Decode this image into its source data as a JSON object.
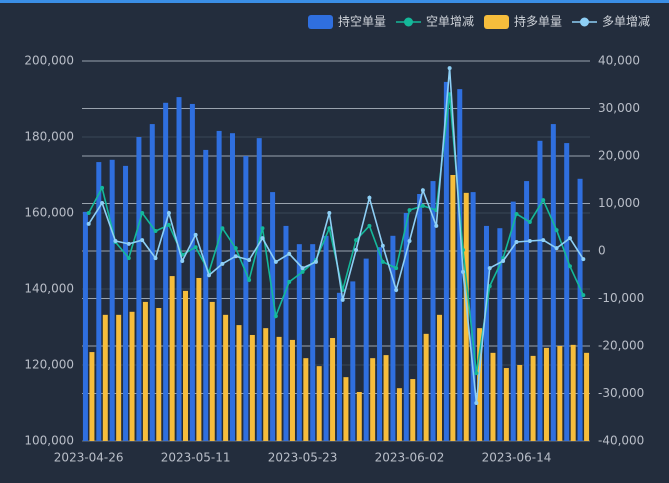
{
  "chart_data": {
    "type": "bar",
    "categories": [
      "2023-04-26",
      null,
      null,
      null,
      null,
      null,
      null,
      null,
      "2023-05-11",
      null,
      null,
      null,
      null,
      null,
      null,
      null,
      "2023-05-23",
      null,
      null,
      null,
      null,
      null,
      null,
      null,
      "2023-06-02",
      null,
      null,
      null,
      null,
      null,
      null,
      null,
      "2023-06-14",
      null,
      null,
      null,
      null,
      null
    ],
    "ylim": [
      100000,
      200000
    ],
    "yticks": [
      {
        "value": 100000,
        "label": "100,000"
      },
      {
        "value": 120000,
        "label": "120,000"
      },
      {
        "value": 140000,
        "label": "140,000"
      },
      {
        "value": 160000,
        "label": "160,000"
      },
      {
        "value": 180000,
        "label": "180,000"
      },
      {
        "value": 200000,
        "label": "200,000"
      }
    ],
    "y2lim": [
      -40000,
      40000
    ],
    "y2ticks": [
      {
        "value": -40000,
        "label": "-40,000"
      },
      {
        "value": -30000,
        "label": "-30,000"
      },
      {
        "value": -20000,
        "label": "-20,000"
      },
      {
        "value": -10000,
        "label": "-10,000"
      },
      0,
      {
        "value": 10000,
        "label": "10,000"
      },
      {
        "value": 20000,
        "label": "20,000"
      },
      {
        "value": 30000,
        "label": "30,000"
      },
      {
        "value": 40000,
        "label": "40,000"
      }
    ],
    "grid": true,
    "legend": "top-right",
    "series": [
      {
        "name": "持空单量",
        "type": "bar",
        "color": "#2f6fdf",
        "values": [
          160300,
          173400,
          174000,
          172400,
          180000,
          183400,
          189000,
          190500,
          188700,
          176600,
          181600,
          181000,
          175000,
          179700,
          165500,
          156600,
          151800,
          151800,
          154000,
          139000,
          142000,
          148000,
          151000,
          154000,
          160000,
          165000,
          168400,
          194500,
          192600,
          165500,
          156600,
          156000,
          163000,
          168400,
          179000,
          183400,
          178400,
          169000
        ]
      },
      {
        "name": "空单增减",
        "type": "line",
        "axis": "y2",
        "color": "#14b89a",
        "values": [
          8000,
          13300,
          1900,
          -1500,
          8000,
          4200,
          5500,
          -800,
          800,
          -4400,
          4800,
          600,
          -6100,
          4800,
          -13700,
          -6500,
          -4400,
          -1900,
          4800,
          -8200,
          2300,
          5300,
          -2300,
          -3600,
          8600,
          9500,
          8600,
          33000,
          200,
          -25700,
          -7400,
          -1500,
          7800,
          6100,
          10700,
          4400,
          -3200,
          -9300
        ]
      },
      {
        "name": "持多单量",
        "type": "bar",
        "color": "#f6bd3c",
        "values": [
          123400,
          133200,
          133200,
          134000,
          136600,
          135000,
          143400,
          139500,
          142900,
          136600,
          133200,
          130500,
          127900,
          129700,
          127400,
          126600,
          121800,
          119700,
          127100,
          116800,
          112900,
          121800,
          122600,
          113900,
          116300,
          128200,
          133200,
          170000,
          165300,
          129700,
          123200,
          119200,
          120000,
          122400,
          124500,
          125000,
          125300,
          123200
        ]
      },
      {
        "name": "多单增减",
        "type": "line",
        "axis": "y2",
        "color": "#8ecff5",
        "values": [
          5700,
          10100,
          2100,
          1500,
          2300,
          -1500,
          8000,
          -2100,
          3400,
          -5100,
          -2700,
          -1100,
          -1900,
          2700,
          -2300,
          -600,
          -3600,
          -2300,
          8000,
          -10300,
          200,
          11200,
          1100,
          -8200,
          2100,
          12800,
          5300,
          38500,
          -4400,
          -32000,
          -3600,
          -2100,
          1900,
          2100,
          2300,
          600,
          2700,
          -1700
        ]
      }
    ]
  }
}
